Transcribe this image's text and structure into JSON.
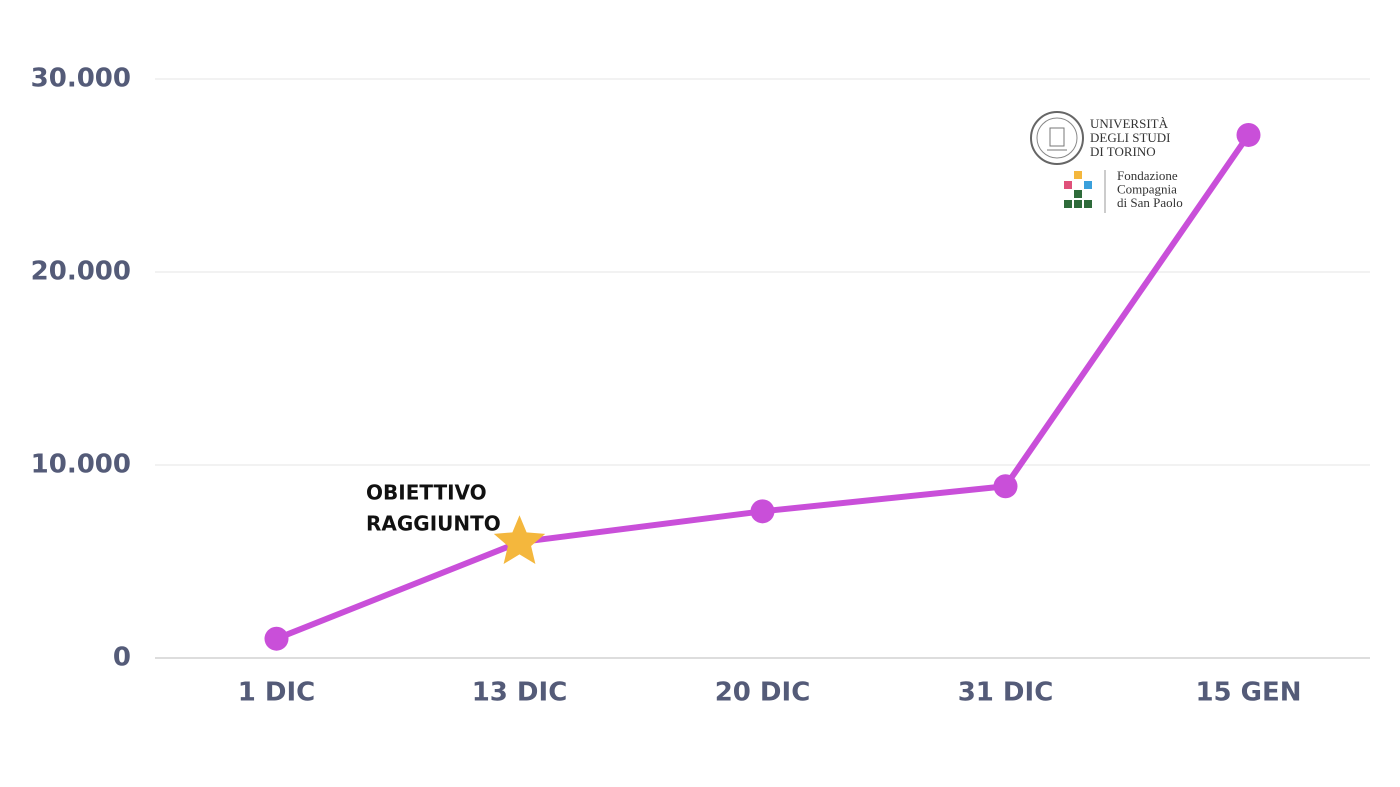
{
  "chart_data": {
    "type": "line",
    "categories": [
      "1 DIC",
      "13 DIC",
      "20 DIC",
      "31 DIC",
      "15 GEN"
    ],
    "series": [
      {
        "color": "#c94fd9",
        "values": [
          1000,
          6000,
          7600,
          8900,
          27100
        ],
        "markers": [
          "circle",
          "star",
          "circle",
          "circle",
          "circle"
        ]
      }
    ],
    "marker_colors": {
      "circle": "#c94fd9",
      "star": "#f4b73d"
    },
    "ylim": [
      0,
      30000
    ],
    "yticks": [
      0,
      {
        "value": 10000,
        "label": "10.000"
      },
      {
        "value": 20000,
        "label": "20.000"
      },
      {
        "value": 30000,
        "label": "30.000"
      }
    ],
    "grid": true,
    "annotation": {
      "lines": [
        "OBIETTIVO",
        "RAGGIUNTO"
      ]
    },
    "logos": {
      "university": [
        "UNIVERSITÀ",
        "DEGLI STUDI",
        "DI TORINO"
      ],
      "foundation": [
        "Fondazione",
        "Compagnia",
        "di San Paolo"
      ]
    }
  }
}
